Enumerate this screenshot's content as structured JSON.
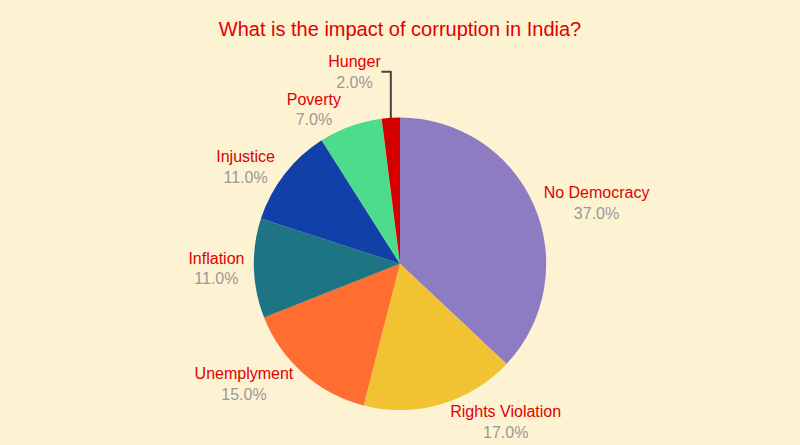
{
  "chart_data": {
    "type": "pie",
    "title": "What is the impact of corruption in India?",
    "categories": [
      "No Democracy",
      "Rights Violation",
      "Unemplyment",
      "Inflation",
      "Injustice",
      "Poverty",
      "Hunger"
    ],
    "values": [
      37,
      17,
      15,
      11,
      11,
      7,
      2
    ],
    "value_labels": [
      "37.0%",
      "17.0%",
      "15.0%",
      "11.0%",
      "11.0%",
      "7.0%",
      "2.0%"
    ],
    "colors": [
      "#8e7cc3",
      "#f1c232",
      "#ff6d31",
      "#1d7583",
      "#1140a8",
      "#4cdc8b",
      "#d40000"
    ],
    "data_labels": true,
    "legend": false
  }
}
